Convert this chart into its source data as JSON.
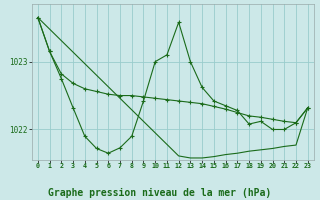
{
  "background_color": "#cce8e8",
  "grid_color": "#99cccc",
  "line_color": "#1a6b1a",
  "marker_color": "#1a6b1a",
  "title": "Graphe pression niveau de la mer (hPa)",
  "title_fontsize": 7.0,
  "xlim": [
    -0.5,
    23.5
  ],
  "ylim": [
    1021.55,
    1023.85
  ],
  "yticks": [
    1022,
    1023
  ],
  "xticks": [
    0,
    1,
    2,
    3,
    4,
    5,
    6,
    7,
    8,
    9,
    10,
    11,
    12,
    13,
    14,
    15,
    16,
    17,
    18,
    19,
    20,
    21,
    22,
    23
  ],
  "series_trend": [
    1023.65,
    1023.48,
    1023.31,
    1023.14,
    1022.97,
    1022.8,
    1022.63,
    1022.46,
    1022.29,
    1022.12,
    1021.95,
    1021.78,
    1021.61,
    1021.58,
    1021.58,
    1021.6,
    1021.63,
    1021.65,
    1021.68,
    1021.7,
    1021.72,
    1021.75,
    1021.77,
    1022.32
  ],
  "series_smooth": [
    1023.65,
    1023.15,
    1022.82,
    1022.68,
    1022.6,
    1022.56,
    1022.52,
    1022.5,
    1022.5,
    1022.48,
    1022.46,
    1022.44,
    1022.42,
    1022.4,
    1022.38,
    1022.34,
    1022.3,
    1022.25,
    1022.2,
    1022.18,
    1022.15,
    1022.12,
    1022.1,
    1022.32
  ],
  "series_variable": [
    1023.65,
    1023.15,
    1022.75,
    1022.32,
    1021.9,
    1021.72,
    1021.65,
    1021.73,
    1021.9,
    1022.42,
    1023.0,
    1023.1,
    1023.58,
    1023.0,
    1022.62,
    1022.42,
    1022.35,
    1022.28,
    1022.08,
    1022.12,
    1022.0,
    1022.0,
    1022.1,
    1022.32
  ]
}
